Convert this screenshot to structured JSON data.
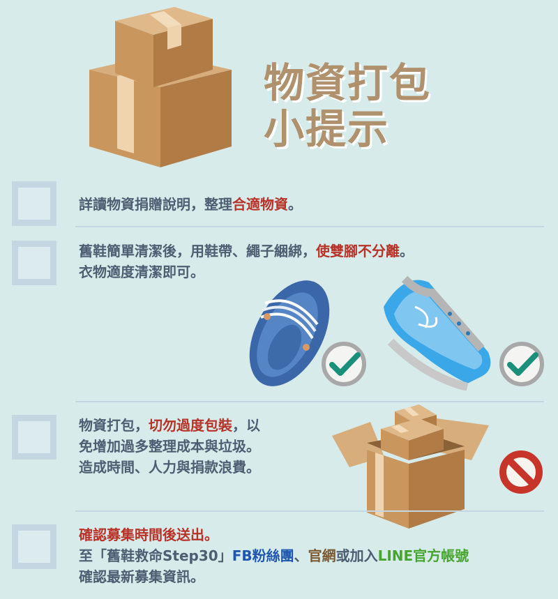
{
  "title": {
    "line1": "物資打包",
    "line2": "小提示"
  },
  "tips": [
    {
      "parts": [
        "詳讀物資捐贈說明，整理",
        "合適物資",
        "。"
      ]
    },
    {
      "line1": [
        "舊鞋簡單清潔後，用鞋帶、繩子綑綁，",
        "使雙腳不分離",
        "。"
      ],
      "line2": "衣物適度清潔即可。"
    },
    {
      "line1": [
        "物資打包，",
        "切勿過度包裝",
        "，以"
      ],
      "line2": "免增加過多整理成本與垃圾。",
      "line3": "造成時間、人力與捐款浪費。"
    },
    {
      "line1": "確認募集時間後送出。",
      "line2": [
        "至「舊鞋救命Step30」",
        "FB粉絲團",
        "、",
        "官網",
        "或加入",
        "LINE官方帳號"
      ],
      "line3": "確認最新募集資訊。"
    }
  ],
  "colors": {
    "background": "#d6ebea",
    "title": "#b0916d",
    "body_text": "#4f5d73",
    "highlight": "#b83227",
    "fb": "#1f57b0",
    "site": "#7b5a32",
    "line": "#46a52e",
    "checkbox": "#c3d6e2",
    "check_ok": "#1a8f7a",
    "prohibit": "#c7342a"
  },
  "icons": [
    "cardboard-boxes-icon",
    "tied-slipper-icon",
    "tied-sneaker-icon",
    "check-circle-icon",
    "open-box-icon",
    "no-sign-icon"
  ]
}
